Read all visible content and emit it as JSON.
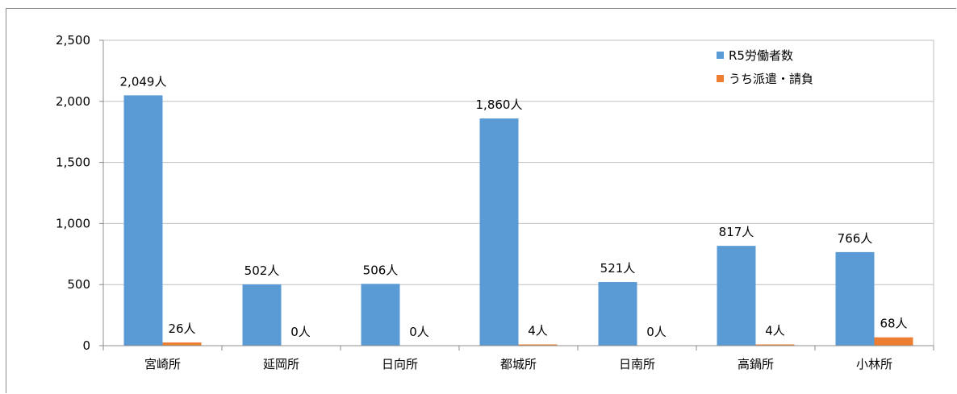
{
  "chart_data": {
    "type": "bar",
    "categories": [
      "宮崎所",
      "延岡所",
      "日向所",
      "都城所",
      "日南所",
      "高鍋所",
      "小林所"
    ],
    "series": [
      {
        "name": "R5労働者数",
        "color": "#5B9BD5",
        "values": [
          2049,
          502,
          506,
          1860,
          521,
          817,
          766
        ],
        "labels": [
          "2,049人",
          "502人",
          "506人",
          "1,860人",
          "521人",
          "817人",
          "766人"
        ]
      },
      {
        "name": "うち派遣・請負",
        "color": "#ED7D31",
        "values": [
          26,
          0,
          0,
          4,
          0,
          4,
          68
        ],
        "labels": [
          "26人",
          "0人",
          "0人",
          "4人",
          "0人",
          "4人",
          "68人"
        ]
      }
    ],
    "y_ticks": [
      "0",
      "500",
      "1,000",
      "1,500",
      "2,000",
      "2,500"
    ],
    "ylim": [
      0,
      2500
    ],
    "grid": true,
    "legend_position": "top-right"
  }
}
